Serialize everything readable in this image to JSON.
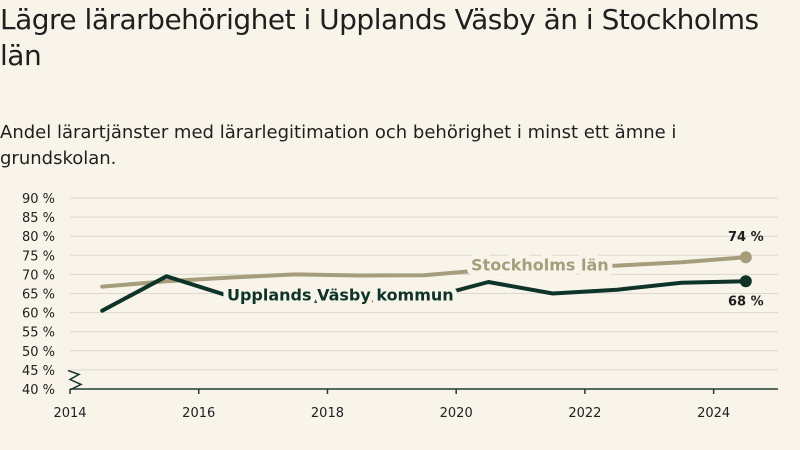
{
  "title": "Lägre lärarbehörighet i Upplands Väsby än i Stockholms län",
  "subtitle": "Andel lärartjänster med lärarlegitimation och behörighet i minst ett ämne i grundskolan.",
  "colors": {
    "background": "#f8f4ea",
    "grid": "#dcd8cf",
    "axis": "#1f3b34",
    "stockholm": "#a59d7b",
    "upplands": "#0e3329"
  },
  "chart_data": {
    "type": "line",
    "y_ticks": [
      40,
      45,
      50,
      55,
      60,
      65,
      70,
      75,
      80,
      85,
      90
    ],
    "y_tick_labels": [
      "40 %",
      "45 %",
      "50 %",
      "55 %",
      "60 %",
      "65 %",
      "70 %",
      "75 %",
      "80 %",
      "85 %",
      "90 %"
    ],
    "x_ticks": [
      2014,
      2016,
      2018,
      2020,
      2022,
      2024
    ],
    "x_tick_labels": [
      "2014",
      "2016",
      "2018",
      "2020",
      "2022",
      "2024"
    ],
    "xlim": [
      2014,
      2025
    ],
    "ylim": [
      40,
      90
    ],
    "axis_break": true,
    "grid": true,
    "series": [
      {
        "name": "Stockholms län",
        "key": "stockholm",
        "x": [
          2014.5,
          2015.5,
          2016.5,
          2017.5,
          2018.5,
          2019.5,
          2020.5,
          2021.5,
          2022.5,
          2023.5,
          2024.5
        ],
        "y": [
          66.8,
          68.2,
          69.2,
          70.0,
          69.7,
          69.8,
          71.2,
          72.0,
          72.3,
          73.2,
          74.5
        ],
        "end_label": "74 %"
      },
      {
        "name": "Upplands Väsby kommun",
        "key": "upplands",
        "x": [
          2014.5,
          2015.5,
          2016.5,
          2017.5,
          2018.5,
          2019.5,
          2020.5,
          2021.5,
          2022.5,
          2023.5,
          2024.5
        ],
        "y": [
          60.5,
          69.5,
          64.2,
          63.0,
          63.2,
          63.5,
          68.0,
          65.0,
          66.0,
          67.8,
          68.2
        ],
        "end_label": "68 %"
      }
    ]
  }
}
